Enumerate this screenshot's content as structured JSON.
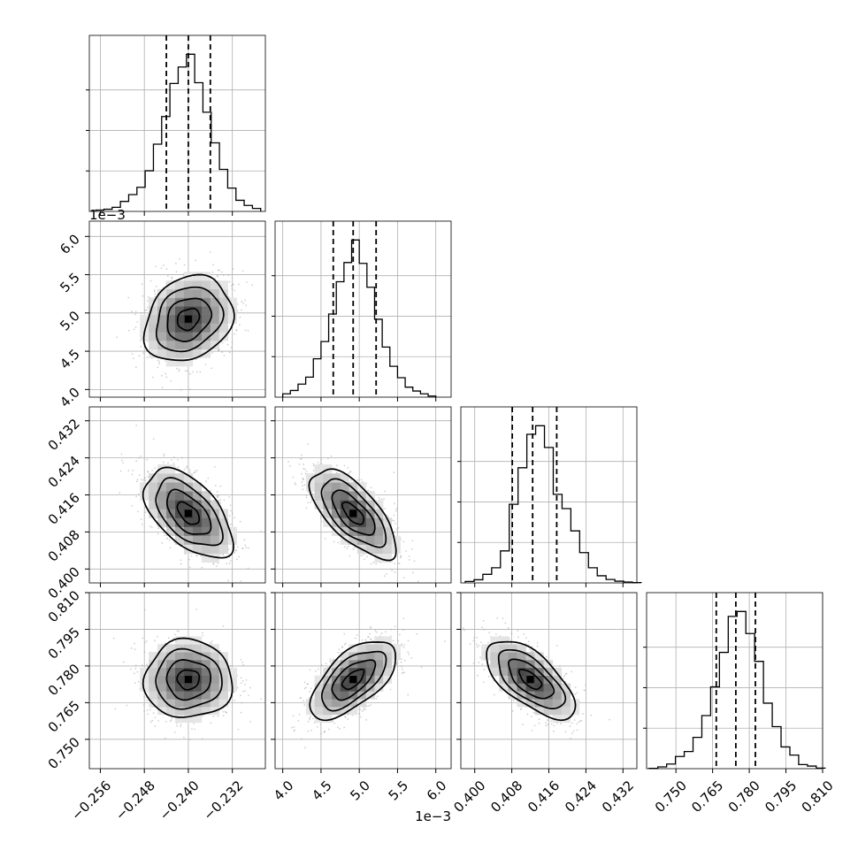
{
  "chart_data": {
    "type": "corner",
    "parameters": [
      {
        "range": [
          -0.258,
          -0.226
        ],
        "ticks": [
          -0.256,
          -0.248,
          -0.24,
          -0.232
        ],
        "tick_labels": [
          "−0.256",
          "−0.248",
          "−0.240",
          "−0.232"
        ],
        "offset_label": "",
        "median": -0.24,
        "q16": -0.244,
        "q84": -0.236
      },
      {
        "range": [
          3.9,
          6.2
        ],
        "ticks": [
          4.0,
          4.5,
          5.0,
          5.5,
          6.0
        ],
        "tick_labels": [
          "4.0",
          "4.5",
          "5.0",
          "5.5",
          "6.0"
        ],
        "offset_label": "1e−3",
        "median": 4.92,
        "q16": 4.66,
        "q84": 5.22
      },
      {
        "range": [
          0.397,
          0.435
        ],
        "ticks": [
          0.4,
          0.408,
          0.416,
          0.424,
          0.432
        ],
        "tick_labels": [
          "0.400",
          "0.408",
          "0.416",
          "0.424",
          "0.432"
        ],
        "offset_label": "",
        "median": 0.4125,
        "q16": 0.4081,
        "q84": 0.4177
      },
      {
        "range": [
          0.738,
          0.81
        ],
        "ticks": [
          0.75,
          0.765,
          0.78,
          0.795,
          0.81
        ],
        "tick_labels": [
          "0.750",
          "0.765",
          "0.780",
          "0.795",
          "0.810"
        ],
        "offset_label": "",
        "median": 0.7745,
        "q16": 0.7665,
        "q84": 0.7825
      }
    ],
    "histograms": [
      {
        "bins": [
          -0.25685,
          -0.25535,
          -0.25385,
          -0.25235,
          -0.25085,
          -0.24935,
          -0.24785,
          -0.24635,
          -0.24485,
          -0.24335,
          -0.24185,
          -0.24035,
          -0.23885,
          -0.23735,
          -0.23585,
          -0.23435,
          -0.23285,
          -0.23135,
          -0.22985,
          -0.22835
        ],
        "counts": [
          0.5,
          0.8,
          1.5,
          3.7,
          6.2,
          8.9,
          15.0,
          24.8,
          35.0,
          47.2,
          53.3,
          58.0,
          47.5,
          36.6,
          25.3,
          15.5,
          8.6,
          4.1,
          2.2,
          1.1
        ]
      },
      {
        "bins": [
          4.0,
          4.1,
          4.2,
          4.3,
          4.4,
          4.5,
          4.6,
          4.7,
          4.8,
          4.9,
          5.0,
          5.1,
          5.2,
          5.3,
          5.4,
          5.5,
          5.6,
          5.7,
          5.8,
          5.9
        ],
        "counts": [
          1.2,
          2.4,
          4.7,
          7.2,
          13.8,
          20.0,
          29.9,
          41.5,
          48.4,
          56.5,
          48.1,
          39.5,
          28.0,
          18.0,
          11.1,
          7.0,
          3.6,
          2.2,
          1.2,
          0.4
        ]
      },
      {
        "bins": [
          0.39795,
          0.39985,
          0.40175,
          0.40365,
          0.40555,
          0.40745,
          0.40935,
          0.41125,
          0.41315,
          0.41505,
          0.41695,
          0.41885,
          0.42075,
          0.42265,
          0.42455,
          0.42645,
          0.42835,
          0.43025,
          0.43215,
          0.43405
        ],
        "counts": [
          0.5,
          1.1,
          3.0,
          5.3,
          11.2,
          27.5,
          40.3,
          52.0,
          55.0,
          47.4,
          31.0,
          26.0,
          18.2,
          10.6,
          5.3,
          2.5,
          1.2,
          0.6,
          0.3,
          0.1
        ]
      },
      {
        "bins": [
          0.739,
          0.7426,
          0.7462,
          0.7498,
          0.7534,
          0.757,
          0.7606,
          0.7642,
          0.7678,
          0.7714,
          0.775,
          0.7786,
          0.7822,
          0.7858,
          0.7894,
          0.793,
          0.7966,
          0.8002,
          0.8038,
          0.8074
        ],
        "counts": [
          0.1,
          0.6,
          1.6,
          4.2,
          5.9,
          10.8,
          18.3,
          28.2,
          40.1,
          52.5,
          54.2,
          46.6,
          37.0,
          22.6,
          14.5,
          7.5,
          4.7,
          1.4,
          0.9,
          0.2
        ]
      }
    ],
    "pairs": [
      {
        "x": 0,
        "y": 1,
        "center": [
          -0.24,
          4.92
        ],
        "rho": 0.22
      },
      {
        "x": 0,
        "y": 2,
        "center": [
          -0.24,
          0.412
        ],
        "rho": -0.55
      },
      {
        "x": 1,
        "y": 2,
        "center": [
          4.92,
          0.412
        ],
        "rho": -0.68
      },
      {
        "x": 0,
        "y": 3,
        "center": [
          -0.24,
          0.7745
        ],
        "rho": 0.0
      },
      {
        "x": 1,
        "y": 3,
        "center": [
          4.92,
          0.7745
        ],
        "rho": 0.62
      },
      {
        "x": 2,
        "y": 3,
        "center": [
          0.412,
          0.7745
        ],
        "rho": -0.65
      }
    ],
    "contour_levels_sigma": [
      0.5,
      1.0,
      1.5,
      2.0
    ],
    "quantiles": [
      0.16,
      0.5,
      0.84
    ],
    "grid": true,
    "colors": {
      "line": "#000000",
      "points": "#aaaaaa",
      "grid": "#b0b0b0"
    }
  }
}
